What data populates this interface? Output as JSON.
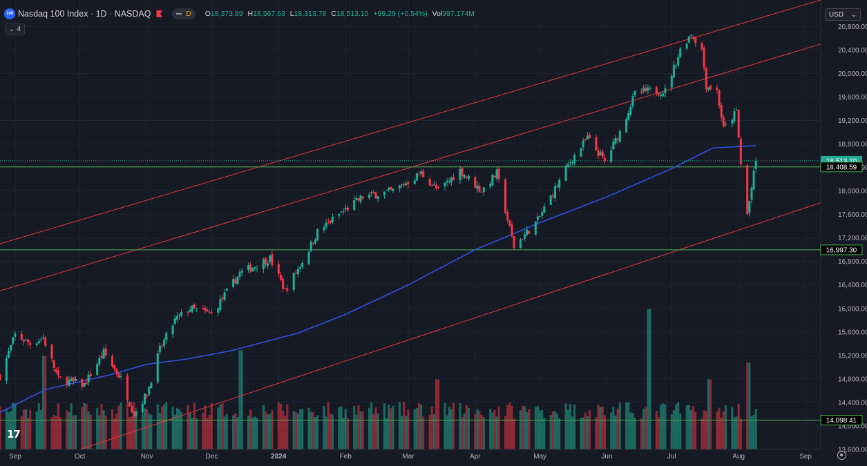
{
  "header": {
    "symbol_badge": "100",
    "title": "Nasdaq 100 Index · 1D · NASDAQ",
    "interval_badge": "D",
    "o_label": "O",
    "o_value": "18,373.89",
    "h_label": "H",
    "h_value": "18,567.63",
    "l_label": "L",
    "l_value": "18,313.78",
    "c_label": "C",
    "c_value": "18,513.10",
    "change": "+99.29 (+0.54%)",
    "vol_label": "Vol",
    "vol_value": "997.174M",
    "indicators_count": "4"
  },
  "currency": "USD",
  "watermark": "17",
  "colors": {
    "up": "#22ab94",
    "down": "#f23645",
    "ma": "#2f54eb",
    "level": "#4caf50",
    "channel": "#e53935",
    "background": "#161a25"
  },
  "chart_data": {
    "type": "candlestick",
    "ylim": [
      13600,
      21250
    ],
    "yticks": [
      13600,
      14000,
      14400,
      14800,
      15200,
      15600,
      16000,
      16400,
      16800,
      17200,
      17600,
      18000,
      18400,
      18800,
      19200,
      19600,
      20000,
      20400,
      20800
    ],
    "ytick_labels": [
      "13,600.00",
      "14,000.00",
      "14,400.00",
      "14,800.00",
      "15,200.00",
      "15,600.00",
      "16,000.00",
      "16,400.00",
      "16,800.00",
      "17,200.00",
      "17,600.00",
      "18,000.00",
      "18,400.00",
      "18,800.00",
      "19,200.00",
      "19,600.00",
      "20,000.00",
      "20,400.00",
      "20,800.00"
    ],
    "xlim": [
      "2023-08-25",
      "2024-09-08"
    ],
    "xticks": [
      {
        "date": "2023-09-01",
        "label": "Sep"
      },
      {
        "date": "2023-10-01",
        "label": "Oct"
      },
      {
        "date": "2023-11-01",
        "label": "Nov"
      },
      {
        "date": "2023-12-01",
        "label": "Dec"
      },
      {
        "date": "2024-01-01",
        "label": "2024"
      },
      {
        "date": "2024-02-01",
        "label": "Feb"
      },
      {
        "date": "2024-03-01",
        "label": "Mar"
      },
      {
        "date": "2024-04-01",
        "label": "Apr"
      },
      {
        "date": "2024-05-01",
        "label": "May"
      },
      {
        "date": "2024-06-01",
        "label": "Jun"
      },
      {
        "date": "2024-07-01",
        "label": "Jul"
      },
      {
        "date": "2024-08-01",
        "label": "Aug"
      },
      {
        "date": "2024-09-01",
        "label": "Sep"
      }
    ],
    "price_path": [
      [
        "2023-08-25",
        14850
      ],
      [
        "2023-09-01",
        15550
      ],
      [
        "2023-09-08",
        15400
      ],
      [
        "2023-09-14",
        15500
      ],
      [
        "2023-09-21",
        14800
      ],
      [
        "2023-10-03",
        14700
      ],
      [
        "2023-10-12",
        15250
      ],
      [
        "2023-10-20",
        14800
      ],
      [
        "2023-10-26",
        14200
      ],
      [
        "2023-11-01",
        14550
      ],
      [
        "2023-11-07",
        15300
      ],
      [
        "2023-11-14",
        15800
      ],
      [
        "2023-11-21",
        16000
      ],
      [
        "2023-12-01",
        15900
      ],
      [
        "2023-12-14",
        16600
      ],
      [
        "2023-12-28",
        16850
      ],
      [
        "2024-01-04",
        16300
      ],
      [
        "2024-01-12",
        16800
      ],
      [
        "2024-01-19",
        17300
      ],
      [
        "2024-01-29",
        17600
      ],
      [
        "2024-02-09",
        17900
      ],
      [
        "2024-02-23",
        18000
      ],
      [
        "2024-03-07",
        18300
      ],
      [
        "2024-03-15",
        18000
      ],
      [
        "2024-03-25",
        18350
      ],
      [
        "2024-04-04",
        18000
      ],
      [
        "2024-04-11",
        18300
      ],
      [
        "2024-04-19",
        17050
      ],
      [
        "2024-04-30",
        17500
      ],
      [
        "2024-05-06",
        17900
      ],
      [
        "2024-05-15",
        18500
      ],
      [
        "2024-05-23",
        18900
      ],
      [
        "2024-05-31",
        18500
      ],
      [
        "2024-06-07",
        19000
      ],
      [
        "2024-06-14",
        19650
      ],
      [
        "2024-06-20",
        19700
      ],
      [
        "2024-06-28",
        19700
      ],
      [
        "2024-07-05",
        20400
      ],
      [
        "2024-07-10",
        20680
      ],
      [
        "2024-07-15",
        20400
      ],
      [
        "2024-07-17",
        19800
      ],
      [
        "2024-07-22",
        19700
      ],
      [
        "2024-07-25",
        19050
      ],
      [
        "2024-07-31",
        19350
      ],
      [
        "2024-08-02",
        18450
      ],
      [
        "2024-08-05",
        17600
      ],
      [
        "2024-08-07",
        18050
      ],
      [
        "2024-08-09",
        18513.1
      ]
    ],
    "moving_average": [
      [
        "2023-08-25",
        14230
      ],
      [
        "2023-09-15",
        14620
      ],
      [
        "2023-10-15",
        14870
      ],
      [
        "2023-11-01",
        15050
      ],
      [
        "2023-11-20",
        15140
      ],
      [
        "2023-12-10",
        15280
      ],
      [
        "2024-01-10",
        15580
      ],
      [
        "2024-02-01",
        15900
      ],
      [
        "2024-03-01",
        16400
      ],
      [
        "2024-04-01",
        17000
      ],
      [
        "2024-05-01",
        17460
      ],
      [
        "2024-06-01",
        17900
      ],
      [
        "2024-07-01",
        18380
      ],
      [
        "2024-07-20",
        18730
      ],
      [
        "2024-08-09",
        18770
      ]
    ],
    "horizontal_levels": [
      18408.59,
      16997.3,
      14098.41
    ],
    "level_labels": [
      "18,408.59",
      "16,997.30",
      "14,098.41"
    ],
    "last_price": 18513.1,
    "last_price_label": "18,513.10",
    "channel_lines": [
      [
        [
          "2023-08-25",
          17100
        ],
        [
          "2024-09-08",
          21250
        ]
      ],
      [
        [
          "2023-08-25",
          16300
        ],
        [
          "2024-09-08",
          20500
        ]
      ],
      [
        [
          "2023-10-01",
          13600
        ],
        [
          "2024-09-08",
          17800
        ]
      ]
    ],
    "volume": {
      "scale_max": 1700,
      "note_spikes": [
        [
          "2023-09-15",
          1000
        ],
        [
          "2023-12-15",
          1060
        ],
        [
          "2024-03-15",
          750
        ],
        [
          "2024-06-21",
          1500
        ],
        [
          "2024-07-19",
          750
        ],
        [
          "2024-08-05",
          930
        ]
      ]
    }
  }
}
